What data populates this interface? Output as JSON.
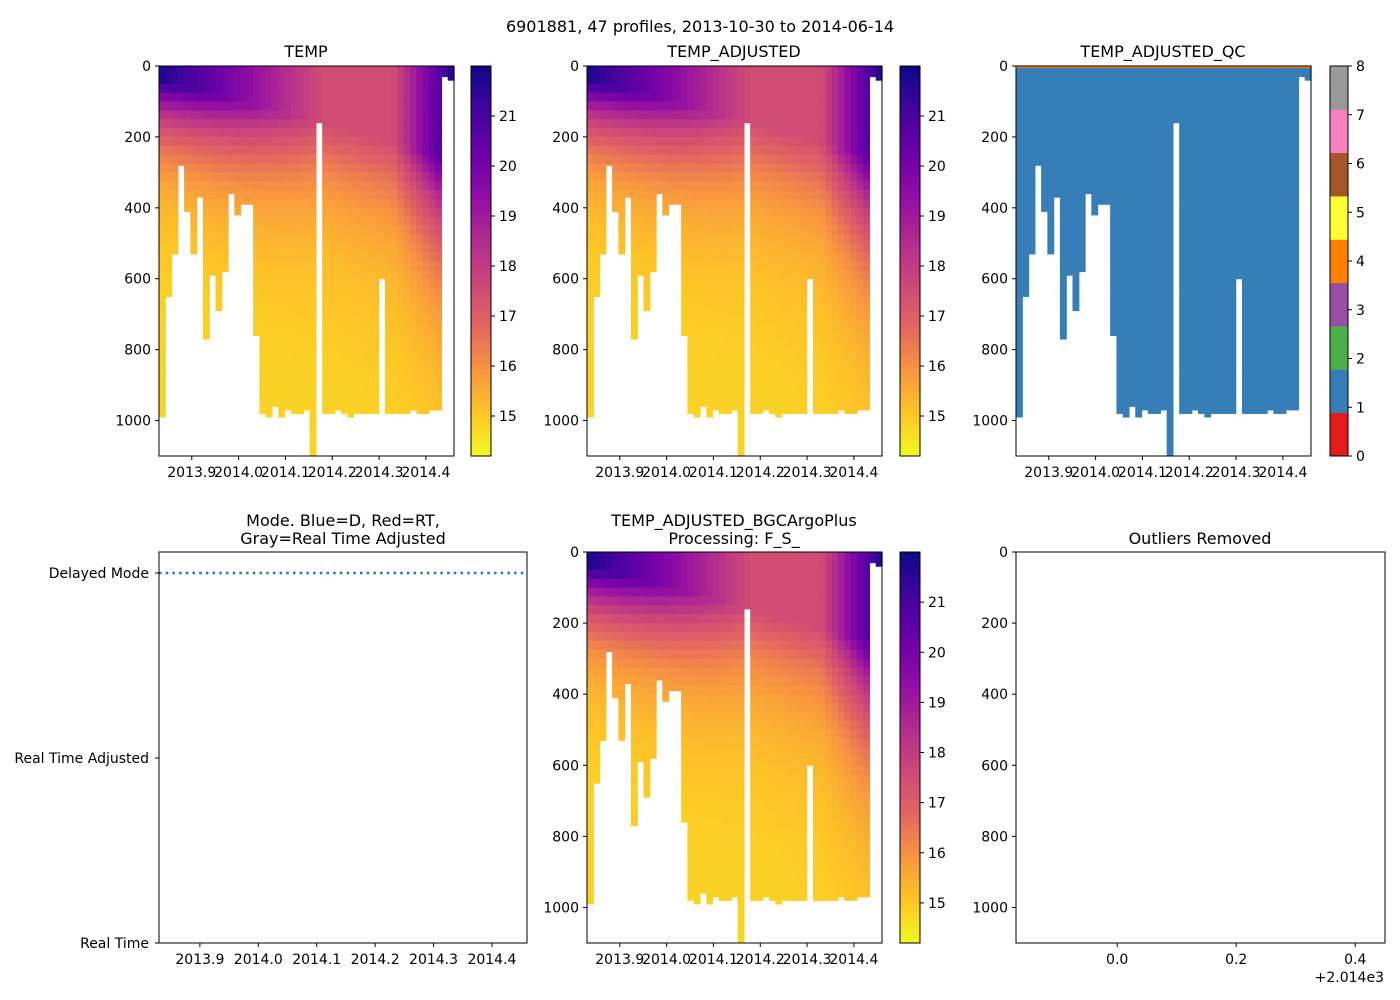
{
  "figure_title": "6901881, 47 profiles, 2013-10-30 to 2014-06-14",
  "colors": {
    "plasma": [
      "#f0f921",
      "#fdc527",
      "#f89540",
      "#e16462",
      "#cc4778",
      "#b12a90",
      "#8f0da4",
      "#6a00a8",
      "#41049d",
      "#0d0887"
    ],
    "qc": [
      "#e41a1c",
      "#377eb8",
      "#4daf4a",
      "#984ea3",
      "#ff7f00",
      "#ffff33",
      "#a65628",
      "#f781bf",
      "#999999"
    ],
    "mode_line": "#1f77b4",
    "qc_flag_top": "#ff7f00"
  },
  "chart_data": [
    {
      "id": "temp",
      "type": "heatmap",
      "title": "TEMP",
      "ylim": [
        1100,
        0
      ],
      "yticks": [
        "0",
        "200",
        "400",
        "600",
        "800",
        "1000"
      ],
      "xlim": [
        2013.83,
        2014.46
      ],
      "xticks": [
        "2013.9",
        "2014.0",
        "2014.1",
        "2014.2",
        "2014.3",
        "2014.4"
      ],
      "colorbar": {
        "min": 14.2,
        "max": 22.0,
        "ticks": [
          "15",
          "16",
          "17",
          "18",
          "19",
          "20",
          "21"
        ]
      }
    },
    {
      "id": "temp_adjusted",
      "type": "heatmap",
      "title": "TEMP_ADJUSTED",
      "ylim": [
        1100,
        0
      ],
      "yticks": [
        "0",
        "200",
        "400",
        "600",
        "800",
        "1000"
      ],
      "xlim": [
        2013.83,
        2014.46
      ],
      "xticks": [
        "2013.9",
        "2014.0",
        "2014.1",
        "2014.2",
        "2014.3",
        "2014.4"
      ],
      "colorbar": {
        "min": 14.2,
        "max": 22.0,
        "ticks": [
          "15",
          "16",
          "17",
          "18",
          "19",
          "20",
          "21"
        ]
      }
    },
    {
      "id": "temp_adjusted_qc",
      "type": "heatmap",
      "title": "TEMP_ADJUSTED_QC",
      "ylim": [
        1100,
        0
      ],
      "yticks": [
        "0",
        "200",
        "400",
        "600",
        "800",
        "1000"
      ],
      "xlim": [
        2013.83,
        2014.46
      ],
      "xticks": [
        "2013.9",
        "2014.0",
        "2014.1",
        "2014.2",
        "2014.3",
        "2014.4"
      ],
      "colorbar": {
        "min": 0,
        "max": 8,
        "ticks": [
          "0",
          "1",
          "2",
          "3",
          "4",
          "5",
          "6",
          "7",
          "8"
        ]
      },
      "dominant_flag": 1
    },
    {
      "id": "mode",
      "type": "line",
      "title_lines": [
        "Mode. Blue=D, Red=RT,",
        "Gray=Real Time Adjusted"
      ],
      "ycategories": [
        "Real Time",
        "Real Time Adjusted",
        "Delayed Mode"
      ],
      "series": [
        {
          "name": "Delayed Mode",
          "value": "Delayed Mode",
          "style": "dotted"
        }
      ],
      "xlim": [
        2013.83,
        2014.46
      ],
      "xticks": [
        "2013.9",
        "2014.0",
        "2014.1",
        "2014.2",
        "2014.3",
        "2014.4"
      ]
    },
    {
      "id": "temp_adjusted_bgc",
      "type": "heatmap",
      "title_lines": [
        "TEMP_ADJUSTED_BGCArgoPlus",
        "Processing: F_S_"
      ],
      "ylim": [
        1100,
        0
      ],
      "yticks": [
        "0",
        "200",
        "400",
        "600",
        "800",
        "1000"
      ],
      "xlim": [
        2013.83,
        2014.46
      ],
      "xticks": [
        "2013.9",
        "2014.0",
        "2014.1",
        "2014.2",
        "2014.3",
        "2014.4"
      ],
      "colorbar": {
        "min": 14.2,
        "max": 22.0,
        "ticks": [
          "15",
          "16",
          "17",
          "18",
          "19",
          "20",
          "21"
        ]
      }
    },
    {
      "id": "outliers",
      "type": "scatter",
      "title": "Outliers Removed",
      "points": [],
      "ylim": [
        1100,
        0
      ],
      "yticks": [
        "0",
        "200",
        "400",
        "600",
        "800",
        "1000"
      ],
      "xlim": [
        -0.17,
        0.45
      ],
      "xticks": [
        "0.0",
        "0.2",
        "0.4"
      ],
      "offset_label": "+2.014e3"
    }
  ],
  "profiles": {
    "max_depth": [
      990,
      650,
      530,
      280,
      410,
      530,
      370,
      770,
      590,
      690,
      580,
      360,
      420,
      390,
      390,
      760,
      980,
      990,
      960,
      990,
      970,
      980,
      980,
      970,
      1100,
      160,
      980,
      980,
      970,
      980,
      990,
      980,
      980,
      980,
      980,
      600,
      980,
      980,
      980,
      980,
      970,
      980,
      980,
      970,
      970,
      30,
      40
    ],
    "start_time": 2013.83,
    "end_time": 2014.455
  }
}
